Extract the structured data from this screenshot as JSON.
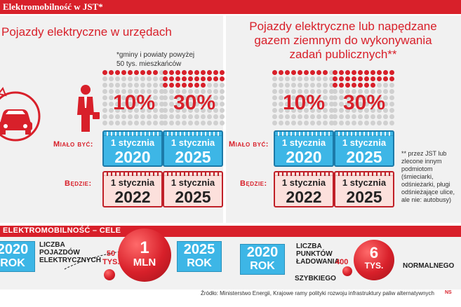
{
  "header": {
    "title": "Elektromobilność w JST*"
  },
  "left": {
    "title": "Pojazdy elektryczne w urzędach",
    "footnote": "*gminy i powiaty powyżej 50 tys. mieszkańców",
    "pct1": "10%",
    "pct2": "30%",
    "pct1_fraction": 0.1,
    "pct2_fraction": 0.3
  },
  "right": {
    "title": "Pojazdy elektryczne lub napędzane gazem ziemnym do wykonywania zadań publicznych**",
    "pct1": "10%",
    "pct2": "30%",
    "footnote": "** przez JST lub zlecone innym podmiotom (śmieciarki, odśnieżarki, pługi odśnieżające ulice, ale nie: autobusy)"
  },
  "labels": {
    "was": "Miało być:",
    "will": "Będzie:"
  },
  "calendars": {
    "day": "1 stycznia",
    "was_year1": "2020",
    "was_year2": "2025",
    "will_year1": "2022",
    "will_year2": "2025"
  },
  "goals": {
    "title": "ELEKTROMOBILNOŚĆ – CELE",
    "vehicles_label": "LICZBA POJAZDÓW ELEKTRYCZNYCH",
    "year_a": "2020",
    "year_b": "2025",
    "rok": "ROK",
    "vehicles_a_num": "50",
    "vehicles_a_unit": "TYS.",
    "vehicles_b_num": "1",
    "vehicles_b_unit": "MLN",
    "charging_label": "LICZBA PUNKTÓW ŁADOWANIA:",
    "fast_num": "400",
    "fast_label": "SZYBKIEGO",
    "normal_num": "6",
    "normal_unit": "TYS.",
    "normal_label": "NORMALNEGO"
  },
  "source": "Źródło: Ministerstwo Energii, Krajowe ramy polityki rozwoju infrastruktury paliw alternatywnych",
  "credit": "NS",
  "colors": {
    "accent": "#d8202a",
    "blue": "#3db6e6",
    "panel": "#f1f1f1"
  }
}
